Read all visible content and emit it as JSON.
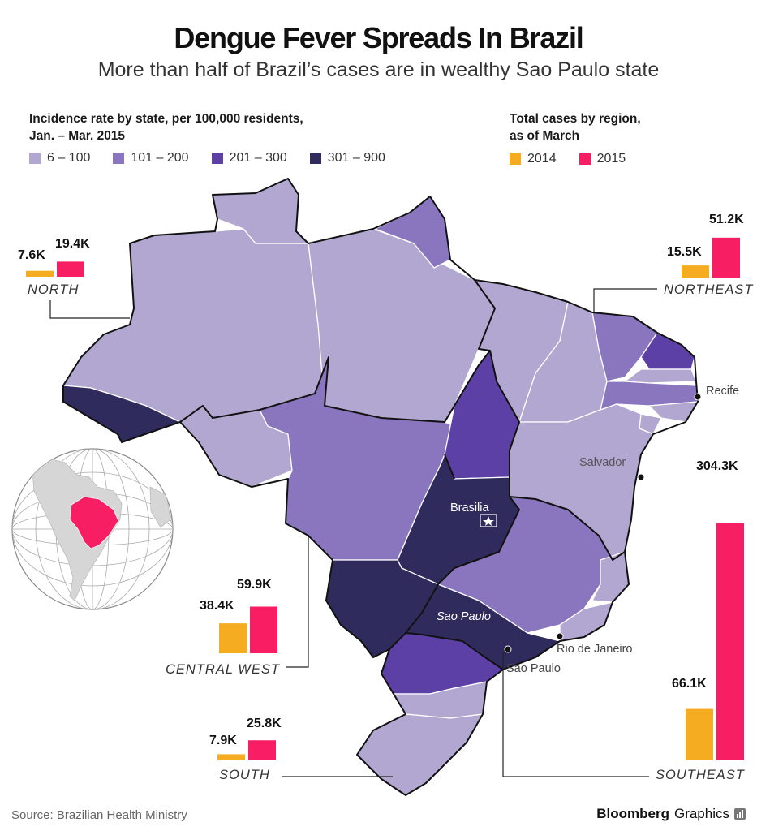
{
  "title": "Dengue Fever Spreads In Brazil",
  "subtitle": "More than half of Brazil’s cases are in wealthy Sao Paulo state",
  "incidence_legend": {
    "title_line1": "Incidence rate by state, per 100,000 residents,",
    "title_line2": "Jan. – Mar. 2015",
    "bins": [
      {
        "label": "6 – 100",
        "color": "#b2a7d1"
      },
      {
        "label": "101 – 200",
        "color": "#8a76bf"
      },
      {
        "label": "201 – 300",
        "color": "#5d40a6"
      },
      {
        "label": "301 – 900",
        "color": "#2f2c5d"
      }
    ]
  },
  "cases_legend": {
    "title_line1": "Total cases by region,",
    "title_line2": "as of March",
    "items": [
      {
        "label": "2014",
        "color": "#f5ac21"
      },
      {
        "label": "2015",
        "color": "#f71e63"
      }
    ]
  },
  "chart_data": {
    "type": "bar",
    "title": "Total cases by region, as of March",
    "categories": [
      "North",
      "Northeast",
      "Central West",
      "South",
      "Southeast"
    ],
    "series": [
      {
        "name": "2014",
        "values": [
          7.6,
          15.5,
          38.4,
          7.9,
          66.1
        ]
      },
      {
        "name": "2015",
        "values": [
          19.4,
          51.2,
          59.9,
          25.8,
          304.3
        ]
      }
    ],
    "unit": "K cases"
  },
  "regions": {
    "north": {
      "name": "NORTH",
      "v2014": "7.6K",
      "v2015": "19.4K"
    },
    "northeast": {
      "name": "NORTHEAST",
      "v2014": "15.5K",
      "v2015": "51.2K"
    },
    "central_west": {
      "name": "CENTRAL WEST",
      "v2014": "38.4K",
      "v2015": "59.9K"
    },
    "south": {
      "name": "SOUTH",
      "v2014": "7.9K",
      "v2015": "25.8K"
    },
    "southeast": {
      "name": "SOUTHEAST",
      "v2014": "66.1K",
      "v2015": "304.3K"
    }
  },
  "cities": {
    "brasilia": "Brasilia",
    "sao_paulo_state": "Sao Paulo",
    "salvador": "Salvador",
    "recife": "Recife",
    "rio": "Rio de Janeiro",
    "sao_paulo_city": "Sao Paulo"
  },
  "source": "Source: Brazilian Health Ministry",
  "brand": {
    "name": "Bloomberg",
    "suffix": "Graphics"
  },
  "colors": {
    "c1": "#b2a7d1",
    "c2": "#8a76bf",
    "c3": "#5d40a6",
    "c4": "#2f2c5d",
    "y2014": "#f5ac21",
    "y2015": "#f71e63",
    "globe_highlight": "#f71e63"
  }
}
